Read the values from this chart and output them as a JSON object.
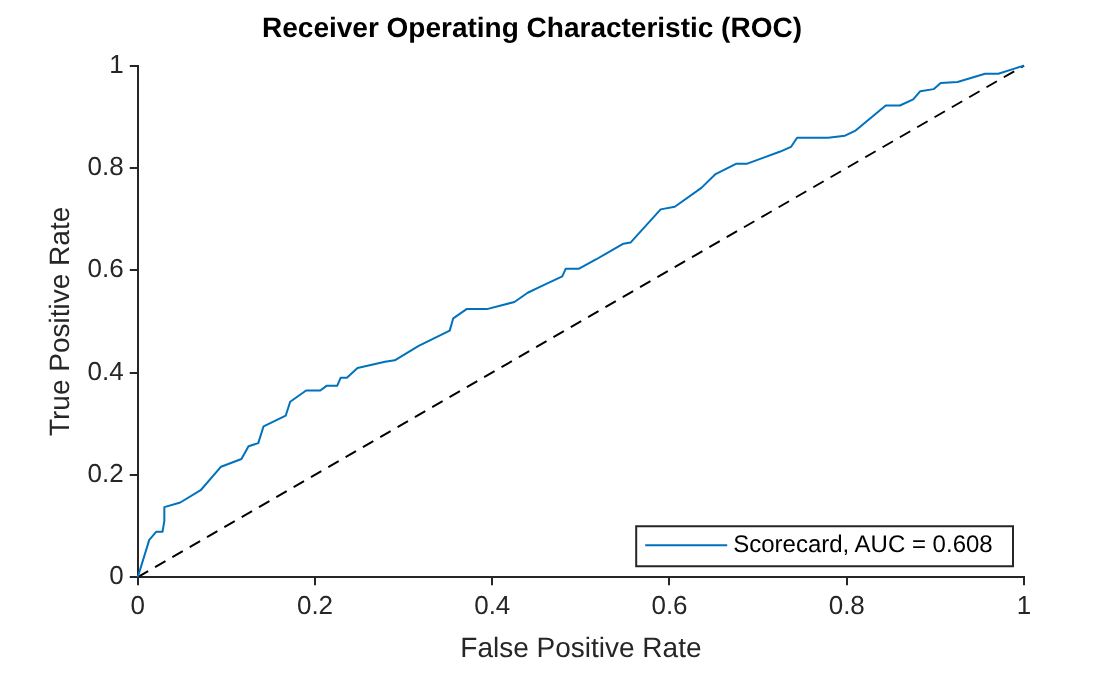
{
  "chart_data": {
    "type": "line",
    "title": "Receiver Operating Characteristic (ROC)",
    "xlabel": "False Positive Rate",
    "ylabel": "True Positive Rate",
    "xlim": [
      0,
      1
    ],
    "ylim": [
      0,
      1
    ],
    "xticks": [
      0,
      0.2,
      0.4,
      0.6,
      0.8,
      1
    ],
    "yticks": [
      0,
      0.2,
      0.4,
      0.6,
      0.8,
      1
    ],
    "grid": false,
    "legend": "bottom right",
    "marker": "none",
    "series": [
      {
        "name": "Scorecard, AUC = 0.608",
        "color": "#0072bd",
        "line_style": "solid",
        "x": [
          0,
          0.013,
          0.021,
          0.028,
          0.03,
          0.03,
          0.048,
          0.071,
          0.094,
          0.117,
          0.125,
          0.136,
          0.142,
          0.167,
          0.172,
          0.19,
          0.206,
          0.213,
          0.225,
          0.229,
          0.236,
          0.248,
          0.279,
          0.29,
          0.317,
          0.352,
          0.356,
          0.371,
          0.394,
          0.425,
          0.44,
          0.452,
          0.479,
          0.483,
          0.498,
          0.517,
          0.548,
          0.556,
          0.59,
          0.606,
          0.636,
          0.652,
          0.675,
          0.687,
          0.725,
          0.737,
          0.744,
          0.779,
          0.798,
          0.81,
          0.844,
          0.86,
          0.875,
          0.883,
          0.898,
          0.906,
          0.925,
          0.956,
          0.971,
          0.991,
          1
        ],
        "values": [
          0,
          0.073,
          0.089,
          0.089,
          0.11,
          0.137,
          0.146,
          0.17,
          0.216,
          0.231,
          0.256,
          0.262,
          0.295,
          0.316,
          0.343,
          0.365,
          0.365,
          0.374,
          0.374,
          0.39,
          0.39,
          0.409,
          0.421,
          0.424,
          0.452,
          0.482,
          0.506,
          0.524,
          0.524,
          0.538,
          0.556,
          0.566,
          0.588,
          0.603,
          0.603,
          0.621,
          0.652,
          0.654,
          0.719,
          0.724,
          0.761,
          0.788,
          0.808,
          0.808,
          0.832,
          0.841,
          0.859,
          0.859,
          0.863,
          0.873,
          0.922,
          0.922,
          0.934,
          0.95,
          0.954,
          0.966,
          0.968,
          0.984,
          0.984,
          0.995,
          1
        ]
      },
      {
        "color": "#000000",
        "line_style": "dashed",
        "x": [
          0,
          1
        ],
        "values": [
          0,
          1
        ]
      }
    ]
  }
}
